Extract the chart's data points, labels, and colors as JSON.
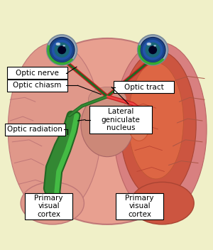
{
  "bg_color": "#f0f0c8",
  "labels": {
    "optic_nerve": "Optic nerve",
    "optic_chiasm": "Optic chiasm",
    "optic_tract": "Optic tract",
    "lateral_geniculate": "Lateral\ngeniculate\nnucleus",
    "optic_radiation": "Optic radiation",
    "primary_visual_left": "Primary\nvisual\ncortex",
    "primary_visual_right": "Primary\nvisual\ncortex"
  },
  "brain_base": "#e8a090",
  "brain_mid": "#d48888",
  "brain_dark": "#c07070",
  "brain_right_deep": "#cc5533",
  "brain_right_mid": "#dd6644",
  "nerve_red": "#cc2222",
  "nerve_green_dark": "#226622",
  "nerve_green_mid": "#338833",
  "nerve_green_light": "#44bb44",
  "eye_sclera": "#99bbcc",
  "eye_iris": "#2255aa",
  "eye_iris2": "#3366cc",
  "eye_pupil": "#001133",
  "eye_green": "#33aa33",
  "label_fontsize": 7.5,
  "label_small_fontsize": 7.0
}
